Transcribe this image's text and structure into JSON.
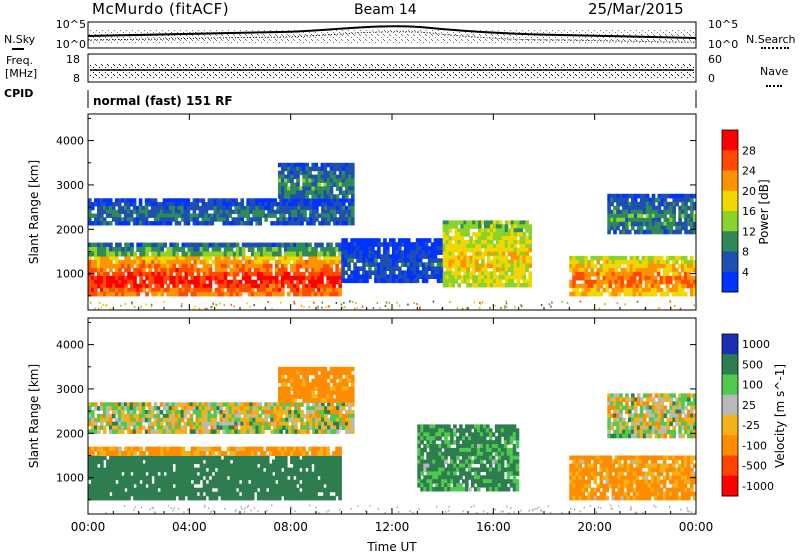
{
  "header": {
    "station": "McMurdo (fitACF)",
    "beam": "Beam 14",
    "date": "25/Mar/2015"
  },
  "summary_panel": {
    "left_labels": {
      "nsky": "N.Sky",
      "freq_line1": "Freq.",
      "freq_line2": "[MHz]",
      "cpid": "CPID"
    },
    "right_labels": {
      "nsearch": "N.Search",
      "nave": "Nave"
    },
    "noise_ticks": [
      "10^5",
      "10^0"
    ],
    "noise_ticks_right": [
      "10^5",
      "10^0"
    ],
    "freq_ticks": [
      "18",
      "8"
    ],
    "nave_ticks": [
      "60",
      "0"
    ],
    "cpid_text": "normal (fast) 151 RF"
  },
  "chart_data": [
    {
      "type": "heatmap",
      "title": "",
      "ylabel": "Slant Range [km]",
      "xlabel": "",
      "x_ticks": [
        "00:00",
        "04:00",
        "08:00",
        "12:00",
        "16:00",
        "20:00",
        "00:00"
      ],
      "xlim_hours": [
        0,
        24
      ],
      "ylim_km": [
        180,
        4600
      ],
      "y_ticks": [
        1000,
        2000,
        3000,
        4000
      ],
      "colorbar": {
        "label": "Power [dB]",
        "ticks": [
          "28",
          "24",
          "20",
          "16",
          "12",
          "8",
          "4"
        ],
        "range": [
          0,
          30
        ],
        "colors": [
          "#ff0000",
          "#ff4a00",
          "#ff9200",
          "#f2d600",
          "#8bd32a",
          "#2e8b57",
          "#1f4fb0",
          "#0033ff"
        ]
      },
      "echo_regions": [
        {
          "t0": 0.0,
          "t1": 10.0,
          "r_lo": 500,
          "r_hi": 1400,
          "value": 28
        },
        {
          "t0": 0.0,
          "t1": 10.0,
          "r_lo": 1400,
          "r_hi": 1700,
          "value": 12
        },
        {
          "t0": 0.0,
          "t1": 10.5,
          "r_lo": 2100,
          "r_hi": 2700,
          "value": 8
        },
        {
          "t0": 7.5,
          "t1": 10.5,
          "r_lo": 2700,
          "r_hi": 3500,
          "value": 10
        },
        {
          "t0": 10.0,
          "t1": 14.0,
          "r_lo": 800,
          "r_hi": 1800,
          "value": 6
        },
        {
          "t0": 14.0,
          "t1": 17.5,
          "r_lo": 700,
          "r_hi": 2200,
          "value": 18
        },
        {
          "t0": 19.0,
          "t1": 24.0,
          "r_lo": 500,
          "r_hi": 1400,
          "value": 24
        },
        {
          "t0": 20.5,
          "t1": 24.0,
          "r_lo": 1900,
          "r_hi": 2800,
          "value": 10
        }
      ]
    },
    {
      "type": "heatmap",
      "title": "",
      "ylabel": "Slant Range [km]",
      "xlabel": "Time UT",
      "x_ticks": [
        "00:00",
        "04:00",
        "08:00",
        "12:00",
        "16:00",
        "20:00",
        "00:00"
      ],
      "xlim_hours": [
        0,
        24
      ],
      "ylim_km": [
        180,
        4600
      ],
      "y_ticks": [
        1000,
        2000,
        3000,
        4000
      ],
      "colorbar": {
        "label": "Velocity [m s^-1]",
        "ticks": [
          "1000",
          "500",
          "100",
          "25",
          "-25",
          "-100",
          "-500",
          "-1000"
        ],
        "colors": [
          "#1a2fb5",
          "#2e7d4f",
          "#4fc94f",
          "#b9b9b9",
          "#f2b318",
          "#ff8c00",
          "#ff4400",
          "#ff0000"
        ]
      },
      "echo_regions": [
        {
          "t0": 0.0,
          "t1": 10.0,
          "r_lo": 500,
          "r_hi": 1500,
          "value": 300
        },
        {
          "t0": 0.0,
          "t1": 10.0,
          "r_lo": 1500,
          "r_hi": 1700,
          "value": -150
        },
        {
          "t0": 0.0,
          "t1": 10.5,
          "r_lo": 2000,
          "r_hi": 2700,
          "value": 0
        },
        {
          "t0": 7.5,
          "t1": 10.5,
          "r_lo": 2700,
          "r_hi": 3500,
          "value": -200
        },
        {
          "t0": 13.0,
          "t1": 17.0,
          "r_lo": 700,
          "r_hi": 2200,
          "value": 150
        },
        {
          "t0": 19.0,
          "t1": 24.0,
          "r_lo": 500,
          "r_hi": 1500,
          "value": -150
        },
        {
          "t0": 20.5,
          "t1": 24.0,
          "r_lo": 1900,
          "r_hi": 2900,
          "value": 0
        }
      ]
    }
  ]
}
